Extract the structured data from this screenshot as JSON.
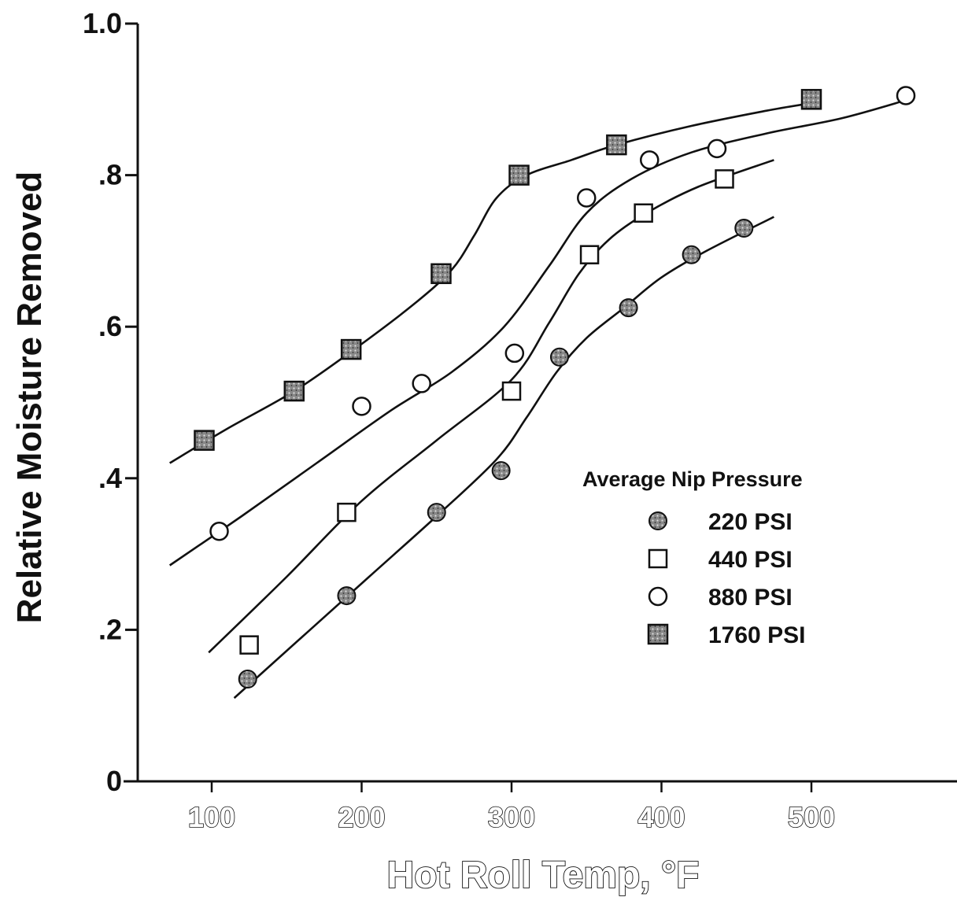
{
  "chart_data": {
    "type": "scatter",
    "xlabel": "Hot Roll Temp, °F",
    "ylabel": "Relative Moisture Removed",
    "xlim": [
      50,
      600
    ],
    "ylim": [
      0,
      1.0
    ],
    "x_ticks": [
      {
        "value": 100,
        "label": "100"
      },
      {
        "value": 200,
        "label": "200"
      },
      {
        "value": 300,
        "label": "300"
      },
      {
        "value": 400,
        "label": "400"
      },
      {
        "value": 500,
        "label": "500"
      }
    ],
    "y_ticks": [
      {
        "value": 0,
        "label": "0"
      },
      {
        "value": 0.2,
        "label": ".2"
      },
      {
        "value": 0.4,
        "label": ".4"
      },
      {
        "value": 0.6,
        "label": ".6"
      },
      {
        "value": 0.8,
        "label": ".8"
      },
      {
        "value": 1.0,
        "label": "1.0"
      }
    ],
    "grid": false,
    "legend": {
      "title": "Average Nip Pressure",
      "placement": "lower-right"
    },
    "series": [
      {
        "name": "220 PSI",
        "marker": "shaded-circle",
        "color": "#555555",
        "points": [
          [
            124,
            0.135
          ],
          [
            190,
            0.245
          ],
          [
            250,
            0.355
          ],
          [
            293,
            0.41
          ],
          [
            332,
            0.56
          ],
          [
            378,
            0.625
          ],
          [
            420,
            0.695
          ],
          [
            455,
            0.73
          ]
        ],
        "curve": [
          [
            115,
            0.11
          ],
          [
            160,
            0.19
          ],
          [
            205,
            0.27
          ],
          [
            250,
            0.35
          ],
          [
            290,
            0.425
          ],
          [
            310,
            0.48
          ],
          [
            330,
            0.54
          ],
          [
            350,
            0.585
          ],
          [
            375,
            0.625
          ],
          [
            400,
            0.665
          ],
          [
            430,
            0.7
          ],
          [
            475,
            0.745
          ]
        ]
      },
      {
        "name": "440 PSI",
        "marker": "open-square",
        "color": "#111111",
        "points": [
          [
            125,
            0.18
          ],
          [
            190,
            0.355
          ],
          [
            300,
            0.515
          ],
          [
            352,
            0.695
          ],
          [
            388,
            0.75
          ],
          [
            442,
            0.795
          ]
        ],
        "curve": [
          [
            98,
            0.17
          ],
          [
            150,
            0.27
          ],
          [
            200,
            0.37
          ],
          [
            250,
            0.45
          ],
          [
            300,
            0.53
          ],
          [
            325,
            0.605
          ],
          [
            345,
            0.67
          ],
          [
            365,
            0.715
          ],
          [
            390,
            0.75
          ],
          [
            425,
            0.785
          ],
          [
            475,
            0.82
          ]
        ]
      },
      {
        "name": "880 PSI",
        "marker": "open-circle",
        "color": "#111111",
        "points": [
          [
            105,
            0.33
          ],
          [
            200,
            0.495
          ],
          [
            240,
            0.525
          ],
          [
            302,
            0.565
          ],
          [
            350,
            0.77
          ],
          [
            392,
            0.82
          ],
          [
            437,
            0.835
          ],
          [
            563,
            0.905
          ]
        ],
        "curve": [
          [
            72,
            0.285
          ],
          [
            120,
            0.35
          ],
          [
            170,
            0.42
          ],
          [
            220,
            0.49
          ],
          [
            260,
            0.54
          ],
          [
            295,
            0.6
          ],
          [
            325,
            0.68
          ],
          [
            350,
            0.75
          ],
          [
            380,
            0.795
          ],
          [
            420,
            0.83
          ],
          [
            470,
            0.855
          ],
          [
            520,
            0.875
          ],
          [
            565,
            0.9
          ]
        ]
      },
      {
        "name": "1760 PSI",
        "marker": "filled-square",
        "color": "#333333",
        "points": [
          [
            95,
            0.45
          ],
          [
            155,
            0.515
          ],
          [
            193,
            0.57
          ],
          [
            253,
            0.67
          ],
          [
            305,
            0.8
          ],
          [
            370,
            0.84
          ],
          [
            500,
            0.9
          ]
        ],
        "curve": [
          [
            72,
            0.42
          ],
          [
            110,
            0.465
          ],
          [
            155,
            0.515
          ],
          [
            195,
            0.57
          ],
          [
            235,
            0.63
          ],
          [
            260,
            0.675
          ],
          [
            275,
            0.72
          ],
          [
            290,
            0.77
          ],
          [
            310,
            0.8
          ],
          [
            340,
            0.82
          ],
          [
            370,
            0.84
          ],
          [
            420,
            0.865
          ],
          [
            470,
            0.885
          ],
          [
            500,
            0.895
          ]
        ]
      }
    ]
  }
}
